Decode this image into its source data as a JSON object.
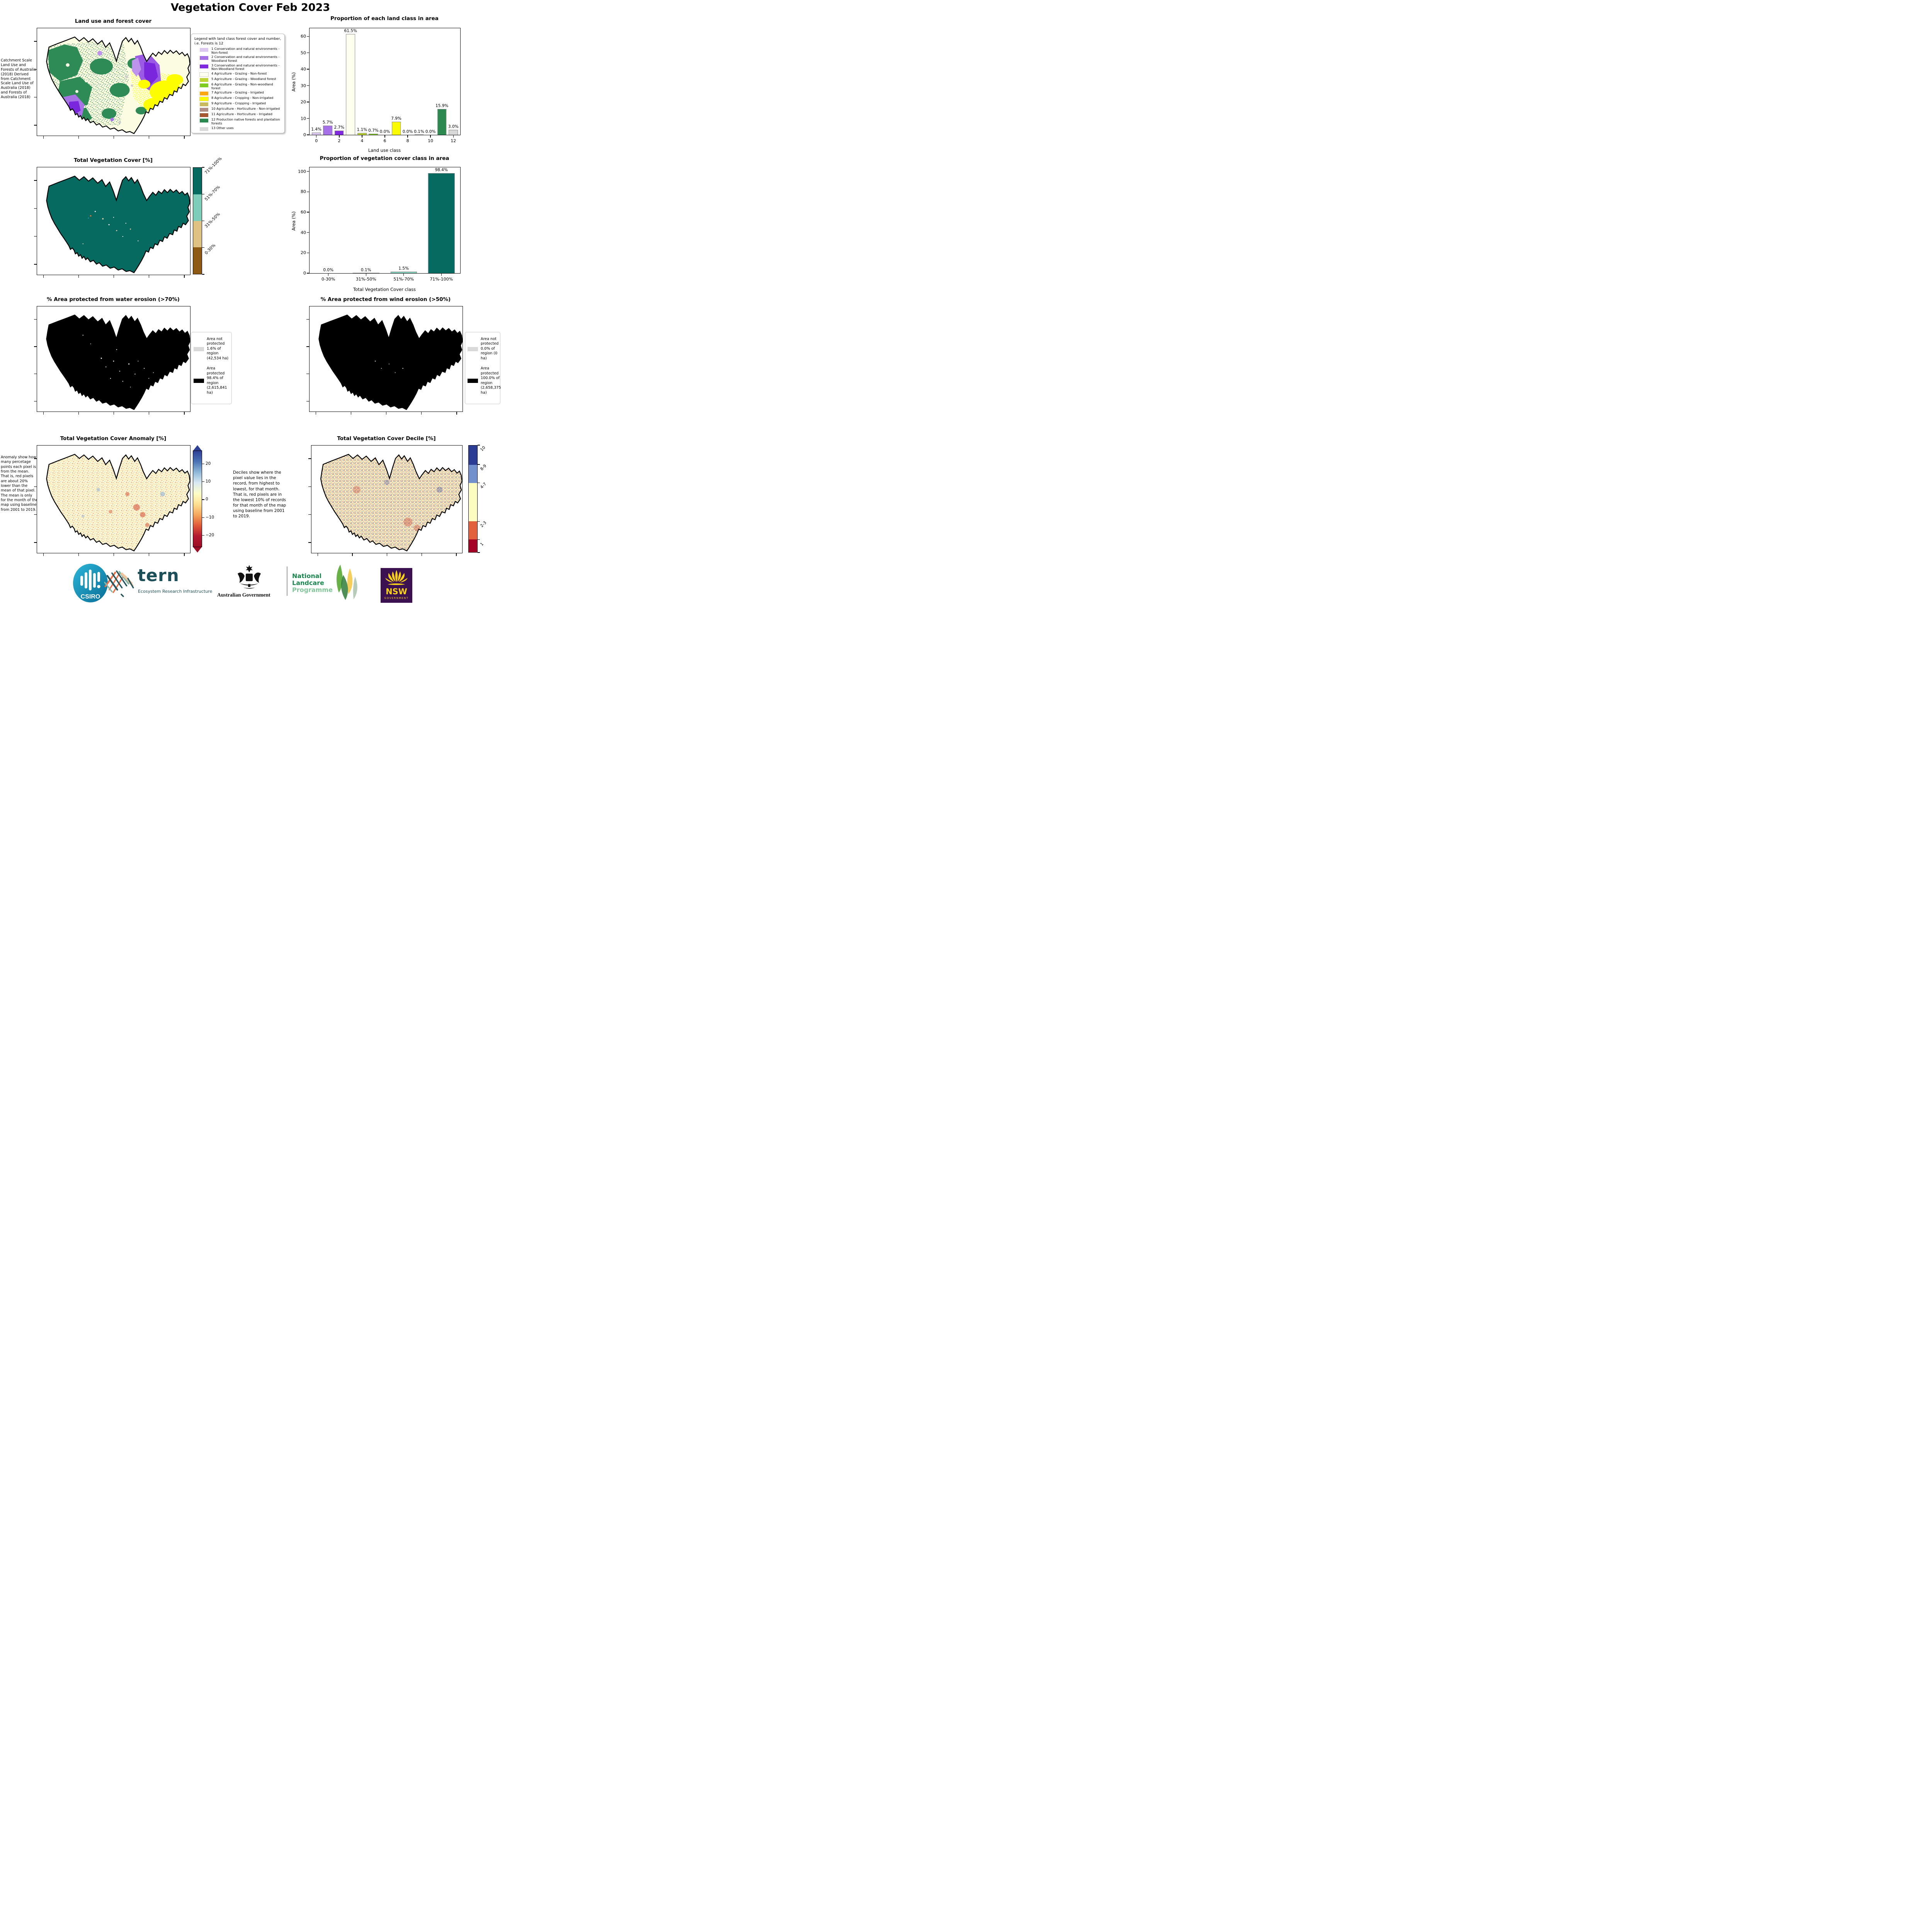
{
  "page_title": "Vegetation Cover Feb 2023",
  "land_use_panel": {
    "title": "Land use and forest cover",
    "side_note": "Catchment Scale Land Use and Forests of Australia (2018) Derived from Catchment Scale Land Use of Australia (2018) and Forests of Australia (2018)",
    "legend_title": "Legend with land class forest cover and number, i.e. Forests is 12",
    "legend_items": [
      {
        "label": "1 Conservation and natural environments - Non-forest",
        "color": "#dcc7f0"
      },
      {
        "label": "2 Conservation and natural environments - Woodland forest",
        "color": "#a671e6"
      },
      {
        "label": "3 Conservation and natural environments - Non-Woodland forest",
        "color": "#8229e0"
      },
      {
        "label": "4 Agriculture - Grazing - Non-forest",
        "color": "#fffff0"
      },
      {
        "label": "5 Agriculture - Grazing - Woodland forest",
        "color": "#bdd433"
      },
      {
        "label": "6 Agriculture - Grazing - Non-woodland forest",
        "color": "#7fcc1f"
      },
      {
        "label": "7 Agriculture - Grazing - Irrigated",
        "color": "#ffa812"
      },
      {
        "label": "8 Agriculture - Cropping - Non-irrigated",
        "color": "#fbfb00"
      },
      {
        "label": "9 Agriculture - Cropping - Irrigated",
        "color": "#c9ba5e"
      },
      {
        "label": "10 Agriculture - Horticulture - Non-irrigated",
        "color": "#b18e85"
      },
      {
        "label": "11 Agriculture - Horticulture - Irrigated",
        "color": "#a55632"
      },
      {
        "label": "12 Production native forests and plantation forests",
        "color": "#2c8a51"
      },
      {
        "label": "13 Other uses",
        "color": "#d9d9d9"
      }
    ]
  },
  "veg_cover_panel": {
    "title": "Total Vegetation Cover [%]",
    "colorbar": [
      {
        "label": "71%-100%",
        "color": "#076a60"
      },
      {
        "label": "51%-70%",
        "color": "#7fccb9"
      },
      {
        "label": "31%-50%",
        "color": "#e0c184"
      },
      {
        "label": "0-30%",
        "color": "#8c5a12"
      }
    ]
  },
  "water_erosion_panel": {
    "title": "% Area protected from water erosion (>70%)",
    "legend": [
      {
        "label": "Area not protected 1.6% of region (42,534 ha)",
        "color": "#d9d9d9"
      },
      {
        "label": "Area protected 98.4% of region (2,615,841 ha)",
        "color": "#000000"
      }
    ]
  },
  "wind_erosion_panel": {
    "title": "% Area protected from wind erosion (>50%)",
    "legend": [
      {
        "label": "Area not protected 0.0% of region (0 ha)",
        "color": "#d9d9d9"
      },
      {
        "label": "Area protected 100.0% of region (2,658,375 ha)",
        "color": "#000000"
      }
    ]
  },
  "anomaly_panel": {
    "title": "Total Vegetation Cover Anomaly [%]",
    "note": "Anomaly show how many percetage points each pixel is from the mean. That is, red pixels are about 20% lower than the mean of that pixel. The mean is only for the month of the map using baseline from 2001 to 2019.",
    "colorbar_ticks": [
      "20",
      "10",
      "0",
      "−10",
      "−20"
    ],
    "gradient": [
      "#2e3f96",
      "#4a74b4",
      "#8fb8d8",
      "#d9e9f2",
      "#fdfdc8",
      "#fee090",
      "#f5a65c",
      "#e05a38",
      "#b31830",
      "#9c0f26"
    ]
  },
  "decile_panel": {
    "title": "Total Vegetation Cover Decile [%]",
    "note": "Deciles show where the pixel value lies in the record, from highest to lowest, for that month. That is, red pixels are in the lowest 10% of records for that month of the map using baseline from 2001 to 2019.",
    "colorbar_labels": [
      "10",
      "8-9",
      "4-7",
      "2-3",
      "1"
    ],
    "colorbar_colors": [
      "#2c3b94",
      "#7190cc",
      "#fdfcc0",
      "#e2603c",
      "#a50026"
    ]
  },
  "footer": {
    "csiro_label": "CSIRO",
    "tern_label": "tern",
    "tern_tagline": "Ecosystem Research Infrastructure",
    "aus_gov_label": "Australian Government",
    "nlp_line1": "National",
    "nlp_line2": "Landcare",
    "nlp_line3": "Programme",
    "nsw_label": "NSW",
    "nsw_sub": "GOVERNMENT"
  },
  "chart_data": [
    {
      "type": "bar",
      "title": "Proportion of each land class in area",
      "xlabel": "Land use class",
      "ylabel": "Area (%)",
      "x": [
        0,
        1,
        2,
        3,
        4,
        5,
        6,
        7,
        8,
        9,
        10,
        11,
        12
      ],
      "values": [
        1.4,
        5.7,
        2.7,
        61.5,
        1.1,
        0.7,
        0.0,
        7.9,
        0.0,
        0.1,
        0.0,
        15.9,
        3.0
      ],
      "labels": [
        "1.4%",
        "5.7%",
        "2.7%",
        "61.5%",
        "1.1%",
        "0.7%",
        "0.0%",
        "7.9%",
        "0.0%",
        "0.1%",
        "0.0%",
        "15.9%",
        "3.0%"
      ],
      "colors": [
        "#dcc7f0",
        "#a671e6",
        "#8229e0",
        "#fffff0",
        "#bdd433",
        "#7fcc1f",
        "#ffa812",
        "#fbfb00",
        "#c9ba5e",
        "#b18e85",
        "#a55632",
        "#2c8a51",
        "#d9d9d9"
      ],
      "xticks": [
        0,
        2,
        4,
        6,
        8,
        10,
        12
      ],
      "yticks": [
        0,
        10,
        20,
        30,
        40,
        50,
        60
      ],
      "ylim": [
        0,
        65
      ],
      "grid": false,
      "legend_position": "none"
    },
    {
      "type": "bar",
      "title": "Proportion of vegetation cover class in area",
      "xlabel": "Total Vegetation Cover class",
      "ylabel": "Area (%)",
      "categories": [
        "0-30%",
        "31%-50%",
        "51%-70%",
        "71%-100%"
      ],
      "values": [
        0.0,
        0.1,
        1.5,
        98.4
      ],
      "labels": [
        "0.0%",
        "0.1%",
        "1.5%",
        "98.4%"
      ],
      "colors": [
        "#8c5a12",
        "#e0c184",
        "#7fccb9",
        "#076a60"
      ],
      "yticks": [
        0,
        20,
        40,
        60,
        80,
        100
      ],
      "ylim": [
        0,
        104
      ],
      "grid": false,
      "legend_position": "none"
    }
  ]
}
